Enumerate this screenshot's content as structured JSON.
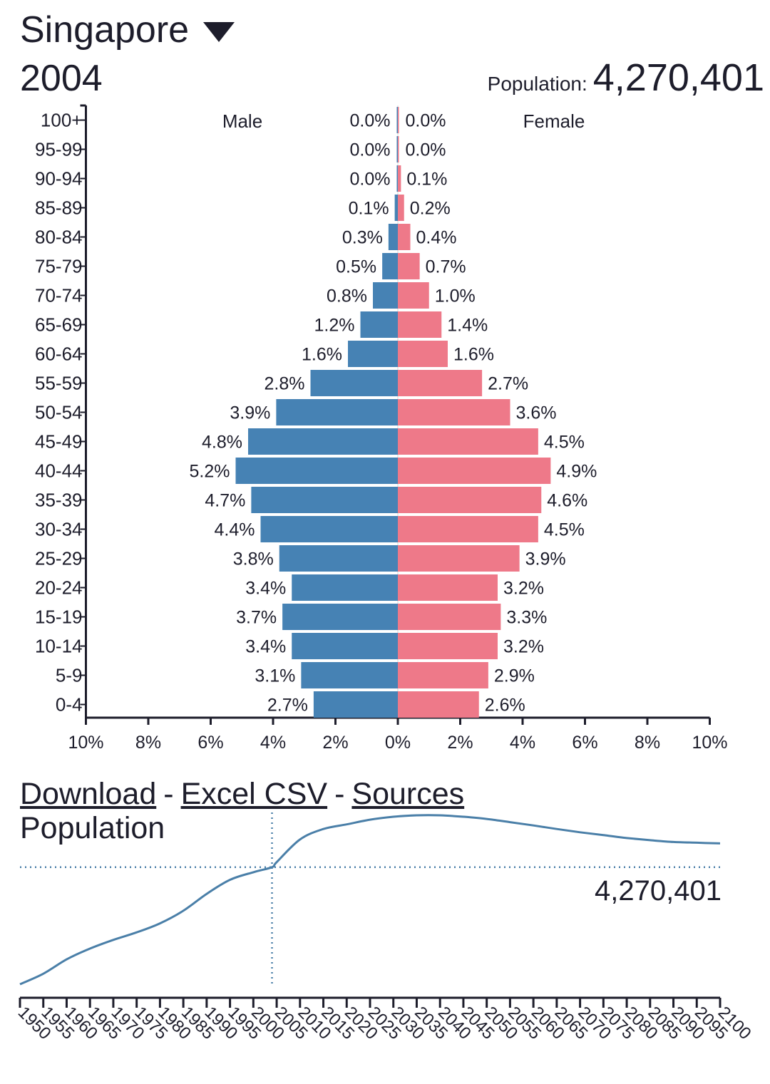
{
  "header": {
    "country": "Singapore",
    "year": "2004",
    "population_label": "Population:",
    "population_value": "4,270,401"
  },
  "links": {
    "download": "Download",
    "excel_csv": "Excel CSV",
    "sources": "Sources",
    "separator": "-"
  },
  "colors": {
    "male": "#4682b4",
    "female": "#ee7989",
    "axis": "#1d1d2b",
    "line": "#4a7fa8"
  },
  "chart_data": [
    {
      "type": "bar",
      "subtype": "population-pyramid",
      "male_label": "Male",
      "female_label": "Female",
      "categories": [
        "100+",
        "95-99",
        "90-94",
        "85-89",
        "80-84",
        "75-79",
        "70-74",
        "65-69",
        "60-64",
        "55-59",
        "50-54",
        "45-49",
        "40-44",
        "35-39",
        "30-34",
        "25-29",
        "20-24",
        "15-19",
        "10-14",
        "5-9",
        "0-4"
      ],
      "series": [
        {
          "name": "Male",
          "values": [
            0.0,
            0.0,
            0.0,
            0.1,
            0.3,
            0.5,
            0.8,
            1.2,
            1.6,
            2.8,
            3.9,
            4.8,
            5.2,
            4.7,
            4.4,
            3.8,
            3.4,
            3.7,
            3.4,
            3.1,
            2.7
          ],
          "labels": [
            "0.0%",
            "0.0%",
            "0.0%",
            "0.1%",
            "0.3%",
            "0.5%",
            "0.8%",
            "1.2%",
            "1.6%",
            "2.8%",
            "3.9%",
            "4.8%",
            "5.2%",
            "4.7%",
            "4.4%",
            "3.8%",
            "3.4%",
            "3.7%",
            "3.4%",
            "3.1%",
            "2.7%"
          ]
        },
        {
          "name": "Female",
          "values": [
            0.0,
            0.0,
            0.1,
            0.2,
            0.4,
            0.7,
            1.0,
            1.4,
            1.6,
            2.7,
            3.6,
            4.5,
            4.9,
            4.6,
            4.5,
            3.9,
            3.2,
            3.3,
            3.2,
            2.9,
            2.6
          ],
          "labels": [
            "0.0%",
            "0.0%",
            "0.1%",
            "0.2%",
            "0.4%",
            "0.7%",
            "1.0%",
            "1.4%",
            "1.6%",
            "2.7%",
            "3.6%",
            "4.5%",
            "4.9%",
            "4.6%",
            "4.5%",
            "3.9%",
            "3.2%",
            "3.3%",
            "3.2%",
            "2.9%",
            "2.6%"
          ]
        }
      ],
      "xlim": [
        -10,
        10
      ],
      "xticks": [
        "10%",
        "8%",
        "6%",
        "4%",
        "2%",
        "0%",
        "2%",
        "4%",
        "6%",
        "8%",
        "10%"
      ]
    },
    {
      "type": "line",
      "title": "Population",
      "x": [
        1950,
        1955,
        1960,
        1965,
        1970,
        1975,
        1980,
        1985,
        1990,
        1995,
        2000,
        2004,
        2005,
        2010,
        2015,
        2020,
        2025,
        2030,
        2035,
        2040,
        2045,
        2050,
        2055,
        2060,
        2065,
        2070,
        2075,
        2080,
        2085,
        2090,
        2095,
        2100
      ],
      "values": [
        1.02,
        1.31,
        1.71,
        2.01,
        2.25,
        2.46,
        2.71,
        3.06,
        3.53,
        3.92,
        4.13,
        4.27,
        4.41,
        5.04,
        5.33,
        5.46,
        5.59,
        5.67,
        5.71,
        5.71,
        5.67,
        5.61,
        5.52,
        5.43,
        5.33,
        5.24,
        5.16,
        5.08,
        5.02,
        4.97,
        4.95,
        4.93
      ],
      "units": "millions",
      "marker_year": 2004,
      "marker_value_label": "4,270,401",
      "xlim": [
        1950,
        2100
      ],
      "ylim": [
        1.0,
        5.75
      ],
      "xticks": [
        "1950",
        "1955",
        "1960",
        "1965",
        "1970",
        "1975",
        "1980",
        "1985",
        "1990",
        "1995",
        "2000",
        "2005",
        "2010",
        "2015",
        "2020",
        "2025",
        "2030",
        "2035",
        "2040",
        "2045",
        "2050",
        "2055",
        "2060",
        "2065",
        "2070",
        "2075",
        "2080",
        "2085",
        "2090",
        "2095",
        "2100"
      ]
    }
  ]
}
